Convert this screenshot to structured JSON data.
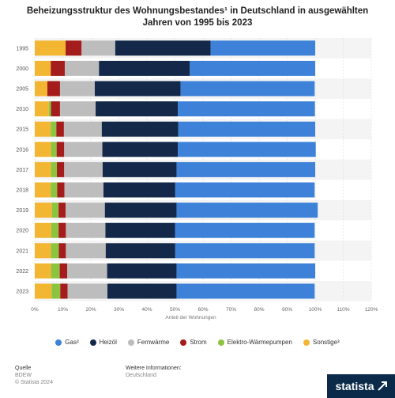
{
  "chart_data": {
    "type": "bar",
    "orientation": "horizontal",
    "stacked": true,
    "title": "Beheizungsstruktur des Wohnungsbestandes¹ in Deutschland in ausgewählten Jahren von 1995 bis 2023",
    "title_lines": [
      "Beheizungsstruktur des Wohnungsbestandes¹ in Deutschland in ausgewählten",
      "Jahren von 1995 bis 2023"
    ],
    "xlabel": "Anteil der Wohnungen",
    "ylabel": "",
    "xlim": [
      0,
      120
    ],
    "x_ticks": [
      "0%",
      "10%",
      "20%",
      "30%",
      "40%",
      "50%",
      "60%",
      "70%",
      "80%",
      "90%",
      "100%",
      "110%",
      "120%"
    ],
    "grid": true,
    "legend_position": "bottom",
    "categories": [
      "1995",
      "2000",
      "2005",
      "2010",
      "2015",
      "2016",
      "2017",
      "2018",
      "2019",
      "2020",
      "2021",
      "2022",
      "2023"
    ],
    "series": [
      {
        "name": "Sonstige³",
        "color": "#f2b632",
        "values": [
          11,
          5.7,
          4.5,
          5,
          5.7,
          5.8,
          5.8,
          5.7,
          6.1,
          5.9,
          5.8,
          5.8,
          6
        ]
      },
      {
        "name": "Elektro-Wärmepumpen",
        "color": "#8cc43f",
        "values": [
          0,
          0,
          0,
          0.8,
          2,
          2,
          2.1,
          2.3,
          2.4,
          2.6,
          2.8,
          3.1,
          3.1
        ]
      },
      {
        "name": "Strom",
        "color": "#a51c1c",
        "values": [
          5.7,
          5,
          4.5,
          3.2,
          2.7,
          2.7,
          2.6,
          2.6,
          2.5,
          2.6,
          2.5,
          2.7,
          2.6
        ]
      },
      {
        "name": "Fernwärme",
        "color": "#bdbdbd",
        "values": [
          12,
          12.2,
          12.4,
          12.7,
          13.5,
          13.6,
          13.7,
          13.9,
          14,
          14.1,
          14.2,
          14.2,
          14.2
        ]
      },
      {
        "name": "Heizöl",
        "color": "#14294a",
        "values": [
          34,
          32.4,
          30.6,
          29.3,
          27.3,
          26.9,
          26.4,
          25.6,
          25.6,
          24.8,
          24.8,
          24.8,
          24.7
        ]
      },
      {
        "name": "Gas²",
        "color": "#3d82d8",
        "values": [
          37.3,
          44.7,
          47.8,
          48.9,
          48.8,
          49.2,
          49.4,
          49.7,
          50.3,
          49.8,
          49.7,
          49.4,
          49.2
        ]
      }
    ],
    "legend_order": [
      "Gas²",
      "Heizöl",
      "Fernwärme",
      "Strom",
      "Elektro-Wärmepumpen",
      "Sonstige³"
    ]
  },
  "footer": {
    "source_heading": "Quelle",
    "source_name": "BDEW",
    "source_copyright": "© Statista 2024",
    "info_heading": "Weitere Informationen:",
    "info_region": "Deutschland"
  },
  "brand": {
    "logo_text": "statista"
  }
}
